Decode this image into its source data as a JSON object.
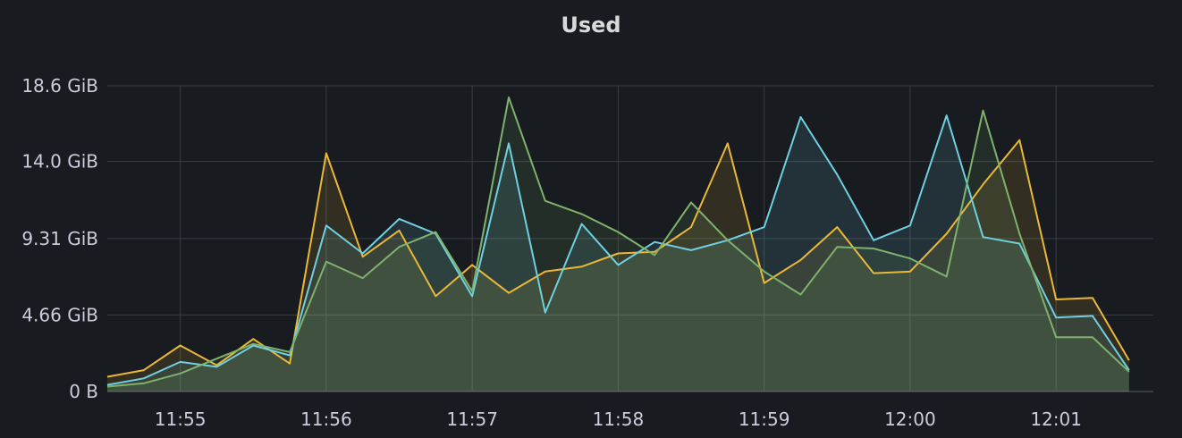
{
  "panel": {
    "title": "Used"
  },
  "chart_data": {
    "type": "area",
    "title": "Used",
    "xlabel": "",
    "ylabel": "",
    "ylim": [
      0,
      18.6
    ],
    "y_unit": "GiB",
    "yticks": [
      {
        "value": 0,
        "label": "0 B"
      },
      {
        "value": 4.66,
        "label": "4.66 GiB"
      },
      {
        "value": 9.31,
        "label": "9.31 GiB"
      },
      {
        "value": 14.0,
        "label": "14.0 GiB"
      },
      {
        "value": 18.6,
        "label": "18.6 GiB"
      }
    ],
    "xlim": [
      "11:54:30",
      "12:01:40"
    ],
    "xticks": [
      "11:55",
      "11:56",
      "11:57",
      "11:58",
      "11:59",
      "12:00",
      "12:01"
    ],
    "x": [
      "11:54:30",
      "11:54:45",
      "11:55:00",
      "11:55:15",
      "11:55:30",
      "11:55:45",
      "11:56:00",
      "11:56:15",
      "11:56:30",
      "11:56:45",
      "11:57:00",
      "11:57:15",
      "11:57:30",
      "11:57:45",
      "11:58:00",
      "11:58:15",
      "11:58:30",
      "11:58:45",
      "11:59:00",
      "11:59:15",
      "11:59:30",
      "11:59:45",
      "12:00:00",
      "12:00:15",
      "12:00:30",
      "12:00:45",
      "12:01:00",
      "12:01:15",
      "12:01:30"
    ],
    "grid": true,
    "legend": "none",
    "series": [
      {
        "color": "#eab839",
        "values": [
          0.9,
          1.3,
          2.8,
          1.6,
          3.2,
          1.7,
          14.5,
          8.2,
          9.8,
          5.8,
          7.7,
          6.0,
          7.3,
          7.6,
          8.4,
          8.5,
          10.0,
          15.1,
          6.6,
          8.0,
          10.0,
          7.2,
          7.3,
          9.6,
          12.6,
          15.3,
          5.6,
          5.7,
          1.9
        ]
      },
      {
        "color": "#6ed0e0",
        "values": [
          0.4,
          0.8,
          1.8,
          1.5,
          2.8,
          2.2,
          10.1,
          8.4,
          10.5,
          9.6,
          5.8,
          15.1,
          4.8,
          10.2,
          7.7,
          9.1,
          8.6,
          9.2,
          10.0,
          16.7,
          13.2,
          9.2,
          10.1,
          16.8,
          9.4,
          9.0,
          4.5,
          4.6,
          1.3
        ]
      },
      {
        "color": "#7eb26d",
        "values": [
          0.3,
          0.5,
          1.1,
          2.0,
          2.9,
          2.4,
          7.9,
          6.9,
          8.8,
          9.7,
          6.1,
          17.9,
          11.6,
          10.8,
          9.7,
          8.3,
          11.5,
          9.2,
          7.3,
          5.9,
          8.8,
          8.7,
          8.1,
          7.0,
          17.1,
          9.6,
          3.3,
          3.3,
          1.2
        ]
      }
    ]
  }
}
